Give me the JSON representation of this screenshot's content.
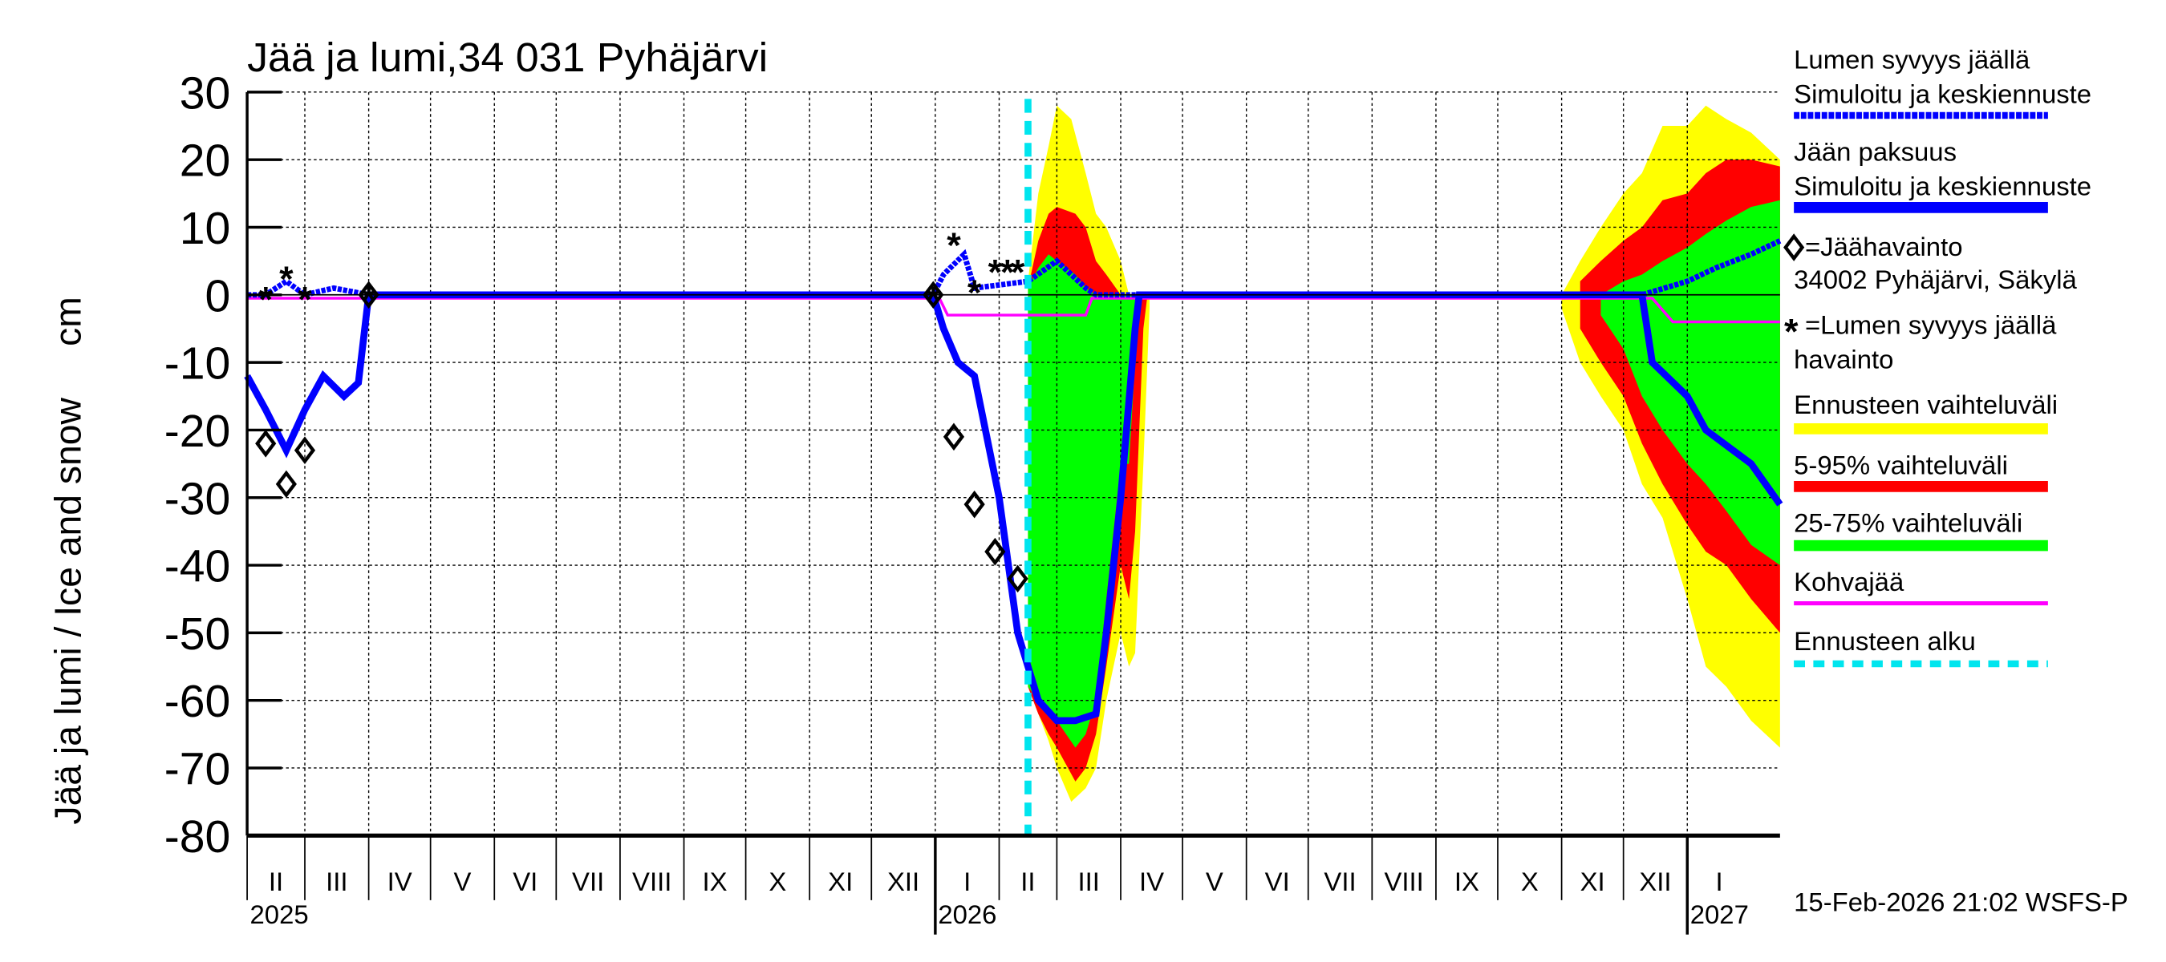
{
  "chart_data": {
    "type": "area",
    "title": "Jää ja lumi,34 031 Pyhäjärvi",
    "ylabel": "Jää ja lumi / Ice and snow     cm",
    "ylim": [
      -80,
      30
    ],
    "yticks": [
      "30",
      "20",
      "10",
      "0",
      "-10",
      "-20",
      "-30",
      "-40",
      "-50",
      "-60",
      "-70",
      "-80"
    ],
    "xlim": [
      "2025-02-01",
      "2027-02-15"
    ],
    "month_labels": [
      "II",
      "III",
      "IV",
      "V",
      "VI",
      "VII",
      "VIII",
      "IX",
      "X",
      "XI",
      "XII",
      "I",
      "II",
      "III",
      "IV",
      "V",
      "VI",
      "VII",
      "VIII",
      "IX",
      "X",
      "XI",
      "XII",
      "I"
    ],
    "year_labels": [
      "2025",
      "2026",
      "2027"
    ],
    "grid": true,
    "forecast_start": "2026-02-15",
    "timestamp": "15-Feb-2026 21:02 WSFS-P",
    "colors": {
      "snow": "#0000ff",
      "ice": "#0000ff",
      "yellow": "#ffff00",
      "red": "#ff0000",
      "green": "#00ff00",
      "kohva": "#ff00ff",
      "forecast": "#00e5ee"
    },
    "legend": {
      "snow_title": "Lumen syvyys jäällä",
      "snow_sub": "Simuloitu ja keskiennuste",
      "ice_title": "Jään paksuus",
      "ice_sub": "Simuloitu ja keskiennuste",
      "ice_obs": "=Jäähavainto",
      "ice_obs_station": "34002 Pyhäjärvi, Säkylä",
      "snow_obs": "=Lumen syvyys jäällä",
      "snow_obs_sub": "havainto",
      "yellow": "Ennusteen vaihteluväli",
      "red": "5-95% vaihteluväli",
      "green": "25-75% vaihteluväli",
      "kohva": "Kohvajää",
      "forecast": "Ennusteen alku"
    },
    "ice": [
      [
        "2025-02-01",
        -12
      ],
      [
        "2025-02-10",
        -17
      ],
      [
        "2025-02-20",
        -23
      ],
      [
        "2025-03-01",
        -17
      ],
      [
        "2025-03-10",
        -12
      ],
      [
        "2025-03-20",
        -15
      ],
      [
        "2025-03-27",
        -13
      ],
      [
        "2025-04-01",
        0
      ],
      [
        "2025-12-31",
        0
      ],
      [
        "2026-01-05",
        -5
      ],
      [
        "2026-01-12",
        -10
      ],
      [
        "2026-01-20",
        -12
      ],
      [
        "2026-02-01",
        -30
      ],
      [
        "2026-02-10",
        -50
      ],
      [
        "2026-02-20",
        -60
      ],
      [
        "2026-03-01",
        -63
      ],
      [
        "2026-03-10",
        -63
      ],
      [
        "2026-03-20",
        -62
      ],
      [
        "2026-03-25",
        -50
      ],
      [
        "2026-04-01",
        -30
      ],
      [
        "2026-04-08",
        -5
      ],
      [
        "2026-04-10",
        0
      ],
      [
        "2026-12-10",
        0
      ],
      [
        "2026-12-15",
        -10
      ],
      [
        "2027-01-01",
        -15
      ],
      [
        "2027-01-10",
        -20
      ],
      [
        "2027-02-01",
        -25
      ],
      [
        "2027-02-15",
        -31
      ]
    ],
    "snow": [
      [
        "2025-02-01",
        0
      ],
      [
        "2025-02-10",
        0
      ],
      [
        "2025-02-20",
        2
      ],
      [
        "2025-03-01",
        0
      ],
      [
        "2025-03-15",
        1
      ],
      [
        "2025-04-01",
        0
      ],
      [
        "2025-12-31",
        0
      ],
      [
        "2026-01-05",
        3
      ],
      [
        "2026-01-15",
        6
      ],
      [
        "2026-01-20",
        1
      ],
      [
        "2026-02-15",
        2
      ],
      [
        "2026-03-01",
        5
      ],
      [
        "2026-03-15",
        1
      ],
      [
        "2026-03-20",
        0
      ],
      [
        "2026-12-10",
        0
      ],
      [
        "2027-01-01",
        2
      ],
      [
        "2027-01-15",
        4
      ],
      [
        "2027-02-01",
        6
      ],
      [
        "2027-02-15",
        8
      ]
    ],
    "kohva": [
      [
        "2025-02-01",
        -0.5
      ],
      [
        "2026-01-03",
        -0.5
      ],
      [
        "2026-01-07",
        -3
      ],
      [
        "2026-03-15",
        -3
      ],
      [
        "2026-03-18",
        -0.5
      ],
      [
        "2026-12-15",
        -0.5
      ],
      [
        "2026-12-25",
        -4
      ],
      [
        "2027-02-15",
        -4
      ]
    ],
    "ice_obs": [
      [
        "2025-02-10",
        -22
      ],
      [
        "2025-02-20",
        -28
      ],
      [
        "2025-03-01",
        -23
      ],
      [
        "2025-04-01",
        0
      ],
      [
        "2025-12-31",
        0
      ],
      [
        "2026-01-10",
        -21
      ],
      [
        "2026-01-20",
        -31
      ],
      [
        "2026-01-30",
        -38
      ],
      [
        "2026-02-10",
        -42
      ]
    ],
    "snow_obs": [
      [
        "2025-02-10",
        0
      ],
      [
        "2025-02-20",
        3
      ],
      [
        "2025-03-01",
        0
      ],
      [
        "2025-04-01",
        0
      ],
      [
        "2025-12-31",
        0
      ],
      [
        "2026-01-10",
        8
      ],
      [
        "2026-01-20",
        1
      ],
      [
        "2026-01-30",
        4
      ],
      [
        "2026-02-05",
        4
      ],
      [
        "2026-02-10",
        4
      ]
    ],
    "bands": [
      {
        "color": "yellow",
        "points": [
          [
            "2026-02-15",
            -58,
            2
          ],
          [
            "2026-02-20",
            -62,
            15
          ],
          [
            "2026-02-25",
            -66,
            22
          ],
          [
            "2026-03-01",
            -70,
            28
          ],
          [
            "2026-03-08",
            -75,
            26
          ],
          [
            "2026-03-15",
            -73,
            18
          ],
          [
            "2026-03-20",
            -70,
            12
          ],
          [
            "2026-03-25",
            -60,
            10
          ],
          [
            "2026-04-01",
            -50,
            5
          ],
          [
            "2026-04-05",
            -55,
            0
          ],
          [
            "2026-04-08",
            -53,
            0
          ],
          [
            "2026-04-12",
            -25,
            0
          ],
          [
            "2026-04-15",
            -2,
            0
          ]
        ]
      },
      {
        "color": "red",
        "points": [
          [
            "2026-02-15",
            -58,
            1
          ],
          [
            "2026-02-20",
            -62,
            8
          ],
          [
            "2026-02-25",
            -65,
            12
          ],
          [
            "2026-03-01",
            -67,
            13
          ],
          [
            "2026-03-10",
            -72,
            12
          ],
          [
            "2026-03-15",
            -70,
            10
          ],
          [
            "2026-03-20",
            -65,
            5
          ],
          [
            "2026-03-25",
            -55,
            3
          ],
          [
            "2026-04-01",
            -40,
            0
          ],
          [
            "2026-04-05",
            -45,
            0
          ],
          [
            "2026-04-08",
            -35,
            0
          ],
          [
            "2026-04-12",
            -5,
            0
          ],
          [
            "2026-04-14",
            0,
            0
          ]
        ]
      },
      {
        "color": "green",
        "points": [
          [
            "2026-02-15",
            -58,
            1
          ],
          [
            "2026-02-20",
            -60,
            4
          ],
          [
            "2026-02-25",
            -61,
            6
          ],
          [
            "2026-03-01",
            -63,
            5
          ],
          [
            "2026-03-10",
            -67,
            3
          ],
          [
            "2026-03-15",
            -65,
            1
          ],
          [
            "2026-03-20",
            -60,
            0
          ],
          [
            "2026-03-25",
            -45,
            0
          ],
          [
            "2026-04-01",
            -25,
            0
          ],
          [
            "2026-04-05",
            -25,
            0
          ],
          [
            "2026-04-08",
            -10,
            0
          ],
          [
            "2026-04-10",
            0,
            0
          ]
        ]
      },
      {
        "color": "yellow",
        "points": [
          [
            "2026-11-01",
            -2,
            0
          ],
          [
            "2026-11-10",
            -10,
            5
          ],
          [
            "2026-11-20",
            -15,
            10
          ],
          [
            "2026-12-01",
            -20,
            15
          ],
          [
            "2026-12-10",
            -28,
            18
          ],
          [
            "2026-12-20",
            -33,
            25
          ],
          [
            "2027-01-01",
            -45,
            25
          ],
          [
            "2027-01-10",
            -55,
            28
          ],
          [
            "2027-01-20",
            -58,
            26
          ],
          [
            "2027-02-01",
            -63,
            24
          ],
          [
            "2027-02-15",
            -67,
            20
          ]
        ]
      },
      {
        "color": "red",
        "points": [
          [
            "2026-11-10",
            -5,
            2
          ],
          [
            "2026-11-20",
            -10,
            5
          ],
          [
            "2026-12-01",
            -15,
            8
          ],
          [
            "2026-12-10",
            -22,
            10
          ],
          [
            "2026-12-20",
            -28,
            14
          ],
          [
            "2027-01-01",
            -34,
            15
          ],
          [
            "2027-01-10",
            -38,
            18
          ],
          [
            "2027-01-20",
            -40,
            20
          ],
          [
            "2027-02-01",
            -45,
            20
          ],
          [
            "2027-02-15",
            -50,
            19
          ]
        ]
      },
      {
        "color": "green",
        "points": [
          [
            "2026-11-20",
            -3,
            0
          ],
          [
            "2026-12-01",
            -8,
            2
          ],
          [
            "2026-12-10",
            -15,
            3
          ],
          [
            "2026-12-20",
            -20,
            5
          ],
          [
            "2027-01-01",
            -25,
            7
          ],
          [
            "2027-01-10",
            -28,
            9
          ],
          [
            "2027-01-20",
            -32,
            11
          ],
          [
            "2027-02-01",
            -37,
            13
          ],
          [
            "2027-02-15",
            -40,
            14
          ]
        ]
      }
    ]
  }
}
